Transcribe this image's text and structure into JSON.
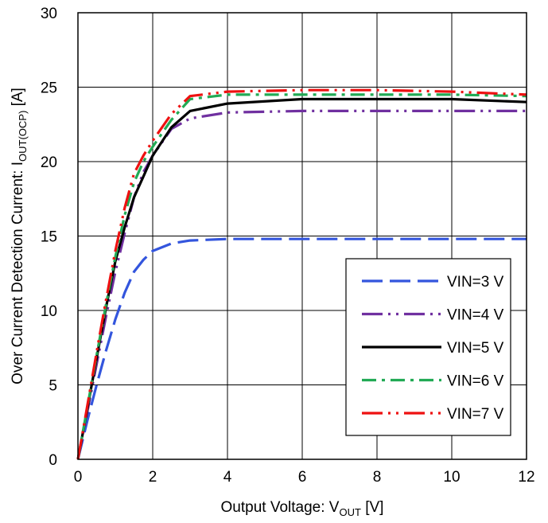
{
  "chart_data": {
    "type": "line",
    "xlabel": {
      "main": "Output Voltage: V",
      "sub": "OUT",
      "suffix": " [V]"
    },
    "ylabel": {
      "main": "Over Current Detection Current: I",
      "sub": "OUT(OCP)",
      "suffix": " [A]"
    },
    "xlim": [
      0,
      12
    ],
    "ylim": [
      0,
      30
    ],
    "xticks": [
      0,
      2,
      4,
      6,
      8,
      10,
      12
    ],
    "yticks": [
      0,
      5,
      10,
      15,
      20,
      25,
      30
    ],
    "xtick_labels": [
      "0",
      "2",
      "4",
      "6",
      "8",
      "10",
      "12"
    ],
    "ytick_labels": [
      "0",
      "5",
      "10",
      "15",
      "20",
      "25",
      "30"
    ],
    "grid": true,
    "legend_position": "lower-right",
    "series": [
      {
        "name": "VIN=3 V",
        "color": "#3355dd",
        "dash": "26,9",
        "x": [
          0,
          0.25,
          0.5,
          0.75,
          1.0,
          1.25,
          1.5,
          1.75,
          2.0,
          2.5,
          3.0,
          4.0,
          6.0,
          8.0,
          10.0,
          12.0
        ],
        "y": [
          0,
          2.6,
          5.0,
          7.3,
          9.4,
          11.2,
          12.6,
          13.4,
          14.0,
          14.5,
          14.7,
          14.8,
          14.8,
          14.8,
          14.8,
          14.8
        ]
      },
      {
        "name": "VIN=4 V",
        "color": "#7030a0",
        "dash": "26,7,3,7,3,7",
        "x": [
          0,
          0.25,
          0.5,
          0.75,
          1.0,
          1.25,
          1.5,
          1.75,
          2.0,
          2.5,
          3.0,
          4.0,
          6.0,
          8.0,
          10.0,
          12.0
        ],
        "y": [
          0,
          3.2,
          6.4,
          9.6,
          12.6,
          15.2,
          17.6,
          19.3,
          20.4,
          22.2,
          22.9,
          23.3,
          23.4,
          23.4,
          23.4,
          23.4
        ]
      },
      {
        "name": "VIN=5 V",
        "color": "#000000",
        "dash": "",
        "x": [
          0,
          0.25,
          0.5,
          0.75,
          1.0,
          1.25,
          1.5,
          1.75,
          2.0,
          2.5,
          3.0,
          4.0,
          6.0,
          8.0,
          10.0,
          12.0
        ],
        "y": [
          0,
          3.4,
          6.8,
          10.2,
          13.3,
          15.6,
          17.6,
          19.0,
          20.4,
          22.3,
          23.4,
          23.9,
          24.2,
          24.2,
          24.2,
          24.0
        ]
      },
      {
        "name": "VIN=6 V",
        "color": "#22aa55",
        "dash": "18,7,4,7",
        "x": [
          0,
          0.25,
          0.5,
          0.75,
          1.0,
          1.25,
          1.5,
          1.75,
          2.0,
          2.5,
          3.0,
          4.0,
          6.0,
          8.0,
          10.0,
          12.0
        ],
        "y": [
          0,
          3.5,
          7.0,
          10.4,
          13.6,
          16.4,
          18.6,
          20.0,
          21.0,
          22.8,
          24.2,
          24.5,
          24.5,
          24.5,
          24.5,
          24.4
        ]
      },
      {
        "name": "VIN=7 V",
        "color": "#ee1111",
        "dash": "26,7,3,7,3,7",
        "x": [
          0,
          0.25,
          0.5,
          0.75,
          1.0,
          1.25,
          1.5,
          1.75,
          2.0,
          2.5,
          3.0,
          4.0,
          6.0,
          8.0,
          10.0,
          12.0
        ],
        "y": [
          0,
          3.6,
          7.2,
          10.7,
          14.0,
          16.9,
          19.2,
          20.4,
          21.4,
          23.2,
          24.4,
          24.7,
          24.8,
          24.8,
          24.7,
          24.5
        ]
      }
    ]
  }
}
